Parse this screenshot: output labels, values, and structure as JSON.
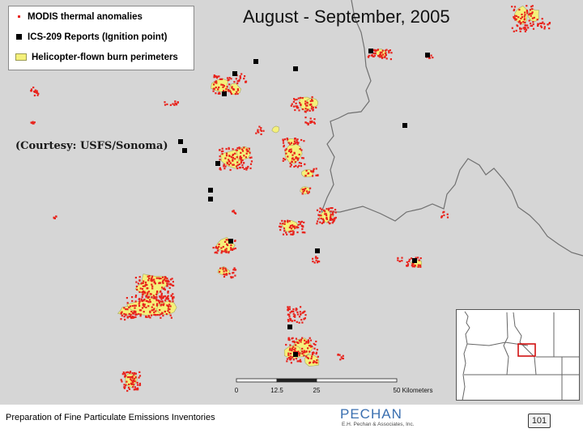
{
  "legend": {
    "items": [
      {
        "label": "MODIS thermal anomalies",
        "symbol": "red-dot",
        "color": "#e8231c"
      },
      {
        "label": "ICS-209 Reports (Ignition point)",
        "symbol": "black-square",
        "color": "#000000"
      },
      {
        "label": "Helicopter-flown burn perimeters",
        "symbol": "yellow-polygon",
        "color": "#f4f07a"
      }
    ]
  },
  "title": "August - September, 2005",
  "credit": "(Courtesy: USFS/Sonoma)",
  "scale": {
    "ticks": [
      "0",
      "12.5",
      "25",
      "50 Kilometers"
    ]
  },
  "footer": {
    "caption": "Preparation of Fine Particulate Emissions Inventories",
    "brand_name": "PECHAN",
    "brand_sub": "E.H. Pechan & Associates, Inc.",
    "page_number": "101"
  },
  "colors": {
    "map_bg": "#d6d6d6",
    "border_line": "#707070",
    "thermal": "#e8231c",
    "perimeter": "#f4f07a",
    "ignition": "#000000",
    "brand": "#3a6fb0"
  }
}
